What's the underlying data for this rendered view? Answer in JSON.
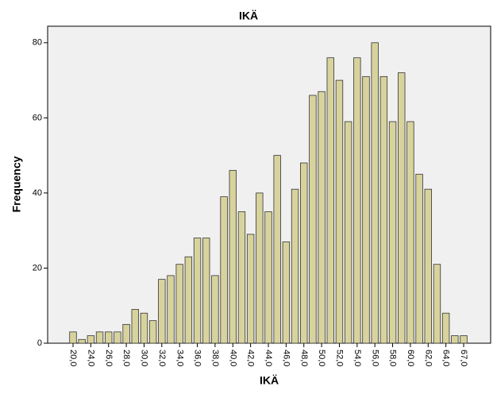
{
  "chart_data": {
    "type": "bar",
    "title": "IKÄ",
    "x_label": "IKÄ",
    "y_label": "Frequency",
    "categories": [
      "20,0",
      null,
      "24,0",
      null,
      "26,0",
      null,
      "28,0",
      null,
      "30,0",
      null,
      "32,0",
      null,
      "34,0",
      null,
      "36,0",
      null,
      "38,0",
      null,
      "40,0",
      null,
      "42,0",
      null,
      "44,0",
      null,
      "46,0",
      null,
      "48,0",
      null,
      "50,0",
      null,
      "52,0",
      null,
      "54,0",
      null,
      "56,0",
      null,
      "58,0",
      null,
      "60,0",
      null,
      "62,0",
      null,
      "64,0",
      null,
      "67,0"
    ],
    "values": [
      3,
      1,
      2,
      3,
      3,
      3,
      5,
      9,
      8,
      6,
      17,
      18,
      21,
      23,
      28,
      28,
      18,
      39,
      46,
      35,
      29,
      40,
      35,
      50,
      27,
      41,
      48,
      66,
      67,
      76,
      70,
      59,
      76,
      71,
      80,
      71,
      59,
      72,
      59,
      45,
      41,
      21,
      8,
      2,
      2
    ],
    "color": "#d8d39d",
    "ylim": [
      0,
      84.4
    ],
    "yticks": [
      0,
      20,
      40,
      60,
      80
    ]
  }
}
